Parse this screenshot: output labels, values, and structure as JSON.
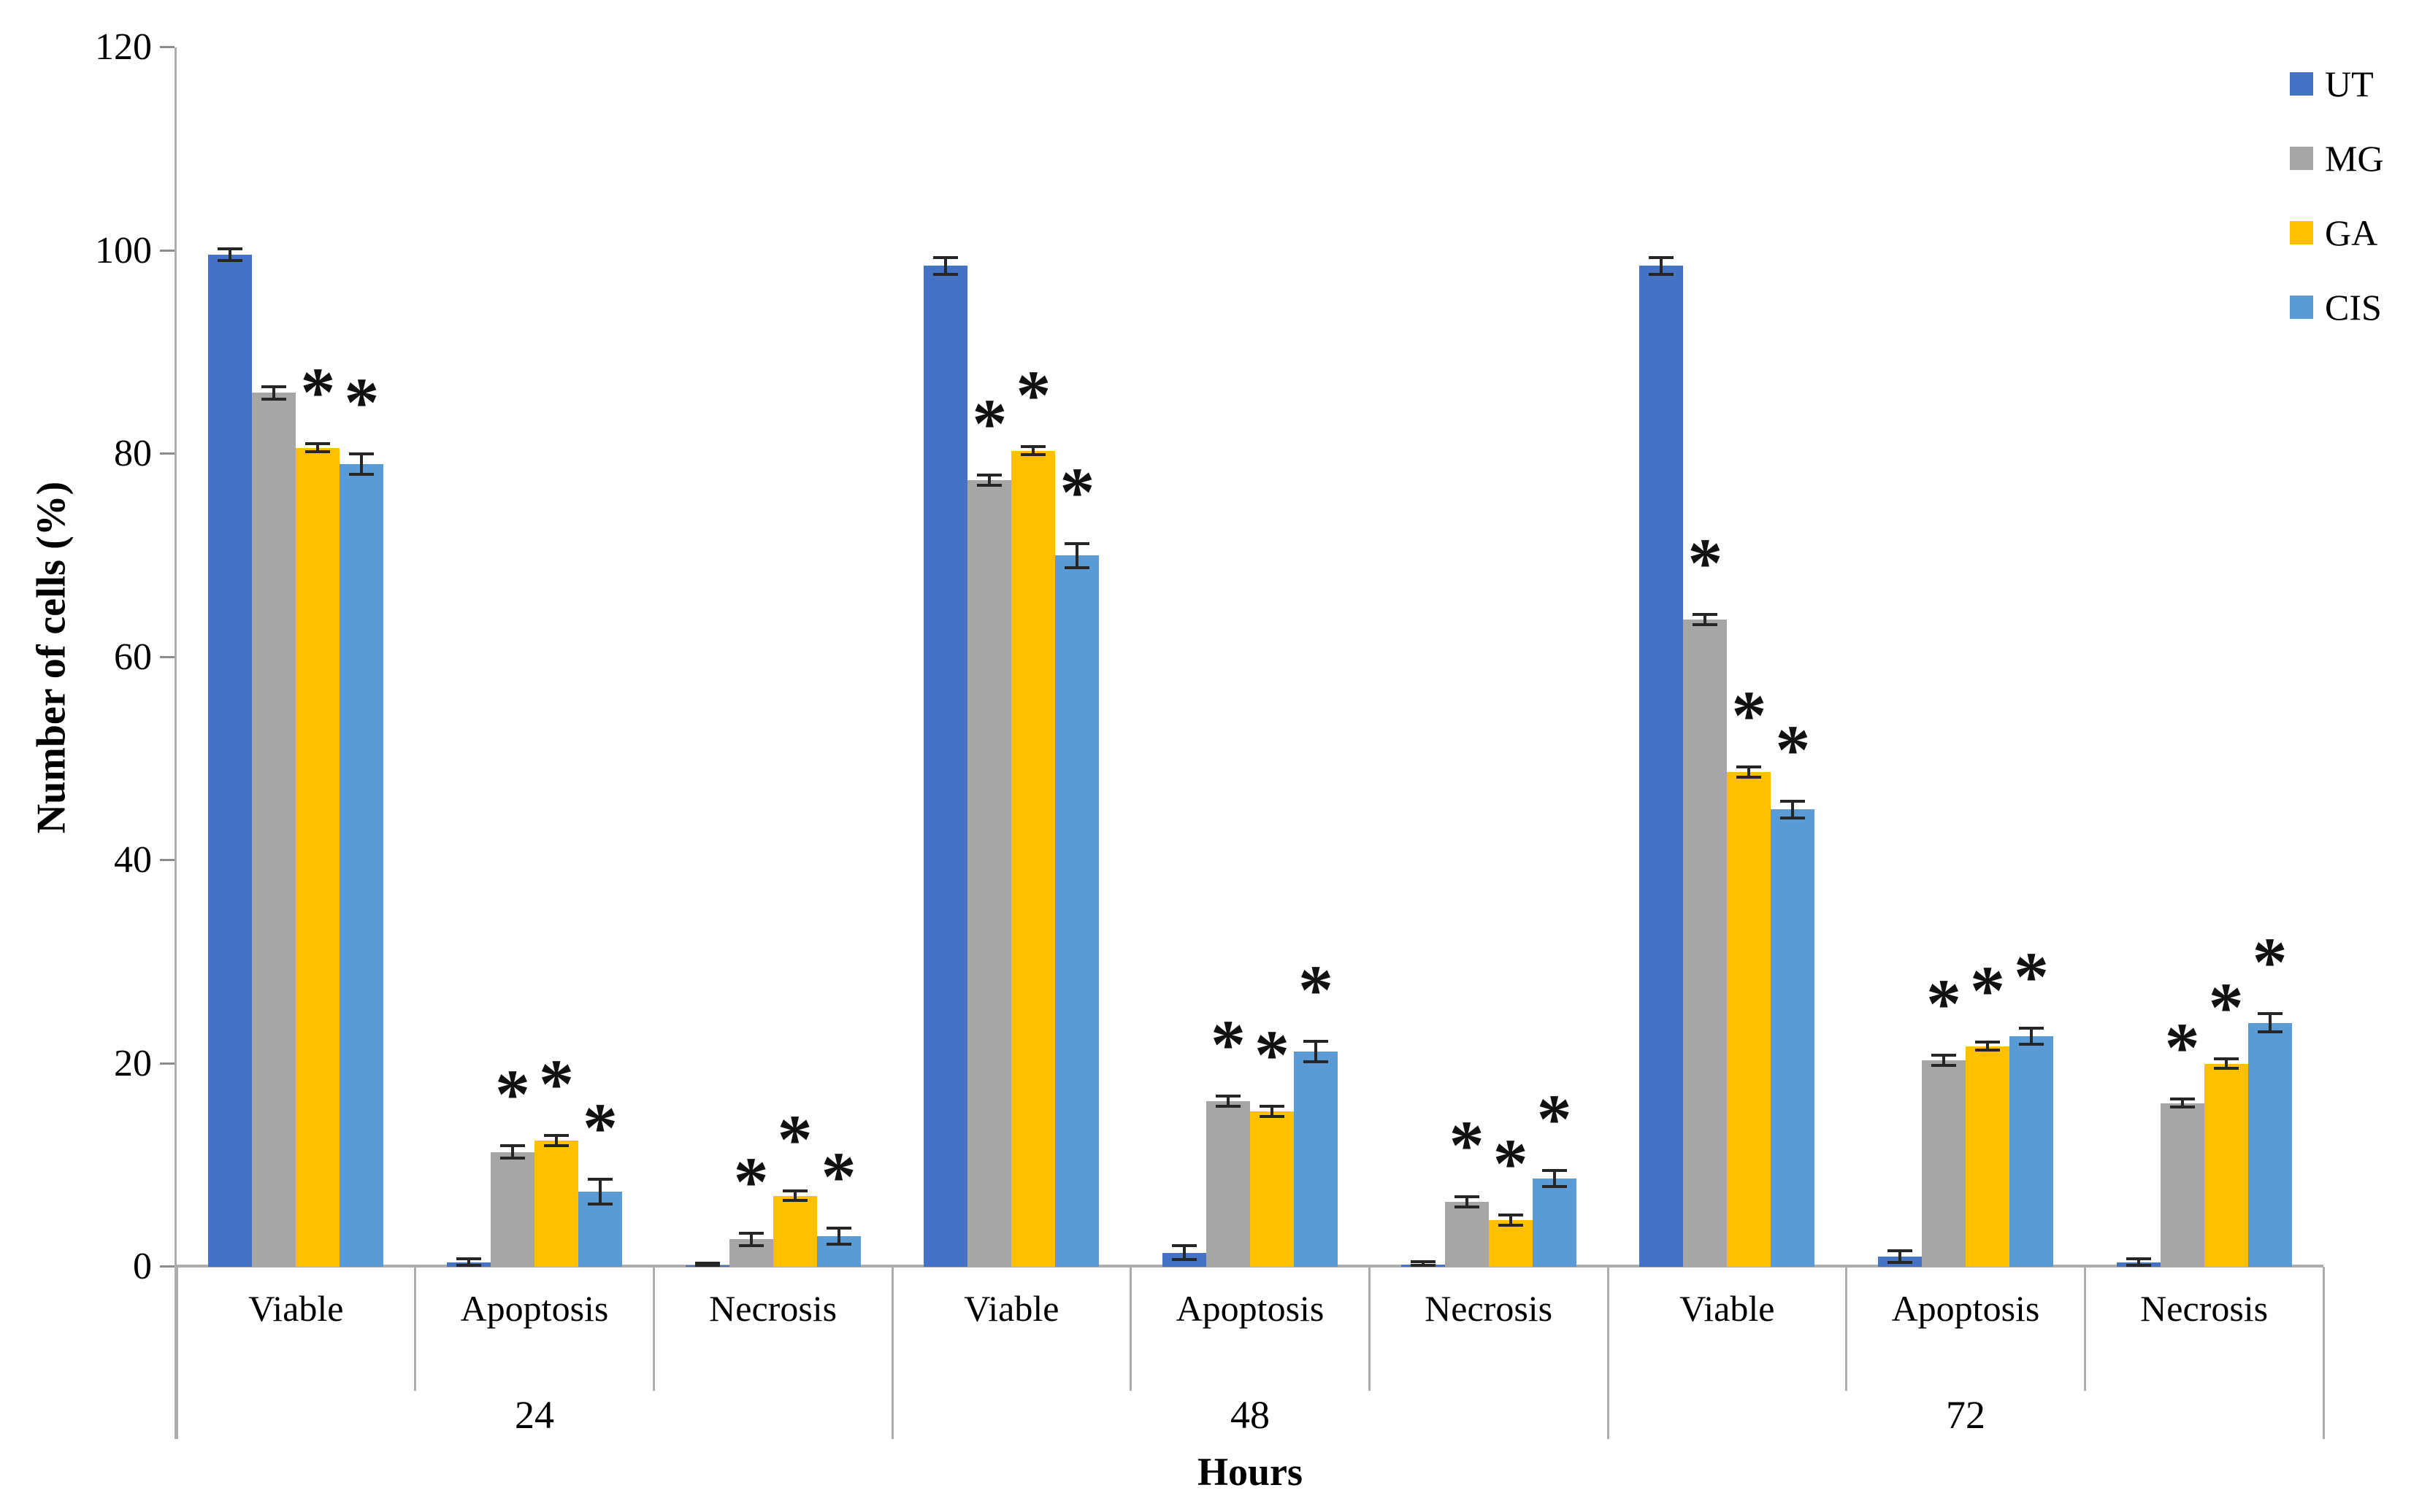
{
  "figure": {
    "background": "#FFFFFF"
  },
  "chart_data": {
    "type": "bar",
    "title": "",
    "ylabel": "Number of cells (%)",
    "xlabel": "Hours",
    "ylim": [
      0,
      120
    ],
    "yticks": [
      0,
      20,
      40,
      60,
      80,
      100,
      120
    ],
    "grid": false,
    "legend_position": "top-right",
    "significance_marker": "*",
    "series": [
      {
        "name": "UT",
        "color": "#4472C4"
      },
      {
        "name": "MG",
        "color": "#A6A6A6"
      },
      {
        "name": "GA",
        "color": "#FFC000"
      },
      {
        "name": "CIS",
        "color": "#5B9BD5"
      }
    ],
    "groups": [
      {
        "hour": "24",
        "categories": [
          {
            "label": "Viable",
            "bars": [
              {
                "series": "UT",
                "value": 99.6,
                "err": 0.6,
                "sig": false
              },
              {
                "series": "MG",
                "value": 86.0,
                "err": 0.6,
                "sig": false
              },
              {
                "series": "GA",
                "value": 80.6,
                "err": 0.4,
                "sig": true
              },
              {
                "series": "CIS",
                "value": 79.0,
                "err": 1.0,
                "sig": true
              }
            ]
          },
          {
            "label": "Apoptosis",
            "bars": [
              {
                "series": "UT",
                "value": 0.4,
                "err": 0.4,
                "sig": false
              },
              {
                "series": "MG",
                "value": 11.3,
                "err": 0.6,
                "sig": true
              },
              {
                "series": "GA",
                "value": 12.4,
                "err": 0.5,
                "sig": true
              },
              {
                "series": "CIS",
                "value": 7.4,
                "err": 1.2,
                "sig": true
              }
            ]
          },
          {
            "label": "Necrosis",
            "bars": [
              {
                "series": "UT",
                "value": 0.15,
                "err": 0.2,
                "sig": false
              },
              {
                "series": "MG",
                "value": 2.7,
                "err": 0.6,
                "sig": true
              },
              {
                "series": "GA",
                "value": 7.0,
                "err": 0.5,
                "sig": true
              },
              {
                "series": "CIS",
                "value": 3.0,
                "err": 0.8,
                "sig": true
              }
            ]
          }
        ]
      },
      {
        "hour": "48",
        "categories": [
          {
            "label": "Viable",
            "bars": [
              {
                "series": "UT",
                "value": 98.5,
                "err": 0.8,
                "sig": false
              },
              {
                "series": "MG",
                "value": 77.4,
                "err": 0.5,
                "sig": true
              },
              {
                "series": "GA",
                "value": 80.3,
                "err": 0.4,
                "sig": true
              },
              {
                "series": "CIS",
                "value": 70.0,
                "err": 1.2,
                "sig": true
              }
            ]
          },
          {
            "label": "Apoptosis",
            "bars": [
              {
                "series": "UT",
                "value": 1.4,
                "err": 0.7,
                "sig": false
              },
              {
                "series": "MG",
                "value": 16.3,
                "err": 0.5,
                "sig": true
              },
              {
                "series": "GA",
                "value": 15.3,
                "err": 0.5,
                "sig": true
              },
              {
                "series": "CIS",
                "value": 21.2,
                "err": 1.0,
                "sig": true
              }
            ]
          },
          {
            "label": "Necrosis",
            "bars": [
              {
                "series": "UT",
                "value": 0.2,
                "err": 0.3,
                "sig": false
              },
              {
                "series": "MG",
                "value": 6.4,
                "err": 0.5,
                "sig": true
              },
              {
                "series": "GA",
                "value": 4.6,
                "err": 0.5,
                "sig": true
              },
              {
                "series": "CIS",
                "value": 8.7,
                "err": 0.8,
                "sig": true
              }
            ]
          }
        ]
      },
      {
        "hour": "72",
        "categories": [
          {
            "label": "Viable",
            "bars": [
              {
                "series": "UT",
                "value": 98.5,
                "err": 0.8,
                "sig": false
              },
              {
                "series": "MG",
                "value": 63.7,
                "err": 0.5,
                "sig": true
              },
              {
                "series": "GA",
                "value": 48.7,
                "err": 0.5,
                "sig": true
              },
              {
                "series": "CIS",
                "value": 45.0,
                "err": 0.8,
                "sig": true
              }
            ]
          },
          {
            "label": "Apoptosis",
            "bars": [
              {
                "series": "UT",
                "value": 1.0,
                "err": 0.6,
                "sig": false
              },
              {
                "series": "MG",
                "value": 20.3,
                "err": 0.5,
                "sig": true
              },
              {
                "series": "GA",
                "value": 21.7,
                "err": 0.4,
                "sig": true
              },
              {
                "series": "CIS",
                "value": 22.7,
                "err": 0.8,
                "sig": true
              }
            ]
          },
          {
            "label": "Necrosis",
            "bars": [
              {
                "series": "UT",
                "value": 0.4,
                "err": 0.4,
                "sig": false
              },
              {
                "series": "MG",
                "value": 16.1,
                "err": 0.4,
                "sig": true
              },
              {
                "series": "GA",
                "value": 20.0,
                "err": 0.5,
                "sig": true
              },
              {
                "series": "CIS",
                "value": 24.0,
                "err": 0.9,
                "sig": true
              }
            ]
          }
        ]
      }
    ],
    "colors": {
      "axis_line": "#ADADAD",
      "tick": "#8C8C8C",
      "error_bar": "#262626",
      "text": "#000000"
    }
  }
}
